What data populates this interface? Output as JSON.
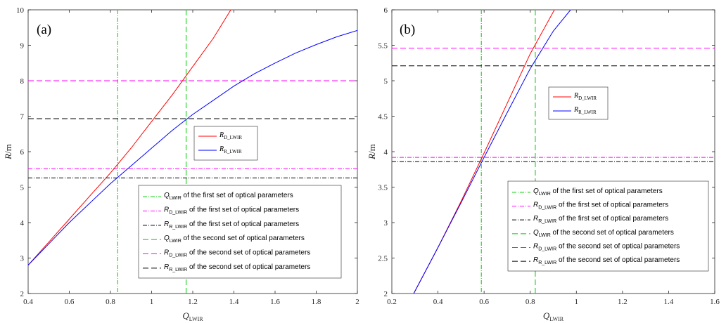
{
  "chart_data": [
    {
      "type": "line",
      "panel_label": "(a)",
      "xlim": [
        0.4,
        2
      ],
      "ylim": [
        2,
        10
      ],
      "xticks": [
        "0.4",
        "0.6",
        "0.8",
        "1",
        "1.2",
        "1.4",
        "1.6",
        "1.8",
        "2"
      ],
      "yticks": [
        "2",
        "3",
        "4",
        "5",
        "6",
        "7",
        "8",
        "9",
        "10"
      ],
      "xlabel": {
        "main": "Q",
        "sub": "LWIR"
      },
      "ylabel": "R/m",
      "grid": false,
      "series": [
        {
          "name": "R_D_LWIR",
          "name_main": "R",
          "name_sub": "D_LWIR",
          "color": "#ff0000",
          "style": "solid",
          "x": [
            0.4,
            0.5,
            0.6,
            0.7,
            0.8,
            0.9,
            1.0,
            1.1,
            1.2,
            1.3,
            1.385
          ],
          "y": [
            2.8,
            3.45,
            4.1,
            4.75,
            5.4,
            6.1,
            6.85,
            7.6,
            8.4,
            9.2,
            10.0
          ]
        },
        {
          "name": "R_R_LWIR",
          "name_main": "R",
          "name_sub": "R_LWIR",
          "color": "#0000ff",
          "style": "solid",
          "x": [
            0.4,
            0.5,
            0.6,
            0.7,
            0.8,
            0.9,
            1.0,
            1.1,
            1.2,
            1.3,
            1.4,
            1.5,
            1.6,
            1.7,
            1.8,
            1.9,
            2.0
          ],
          "y": [
            2.8,
            3.4,
            4.0,
            4.55,
            5.1,
            5.6,
            6.1,
            6.6,
            7.05,
            7.45,
            7.85,
            8.2,
            8.5,
            8.78,
            9.02,
            9.24,
            9.42
          ]
        }
      ],
      "reference_lines": [
        {
          "axis": "x",
          "value": 0.835,
          "color": "#00cc00",
          "dash": "6,2,1,2"
        },
        {
          "axis": "y",
          "value": 5.52,
          "color": "#ff00ff",
          "dash": "6,2,1,2"
        },
        {
          "axis": "y",
          "value": 5.26,
          "color": "#000000",
          "dash": "6,2,1,2"
        },
        {
          "axis": "x",
          "value": 1.168,
          "color": "#00cc00",
          "dash": "8,4"
        },
        {
          "axis": "y",
          "value": 8.0,
          "color": "#ff00ff",
          "dash": "8,4"
        },
        {
          "axis": "y",
          "value": 6.93,
          "color": "#000000",
          "dash": "8,4"
        }
      ],
      "legend_curves_position": "center",
      "legend_refs_position": "bottom-right",
      "legend_refs": [
        {
          "main": "Q",
          "sub": "LWIR",
          "rest": " of the first set of optical parameters",
          "color": "#00cc00",
          "dash": "6,2,1,2"
        },
        {
          "main": "R",
          "sub": "D_LWIR",
          "rest": " of the first set of optical parameters",
          "color": "#ff00ff",
          "dash": "6,2,1,2"
        },
        {
          "main": "R",
          "sub": "R_LWIR",
          "rest": " of the first set of optical parameters",
          "color": "#000000",
          "dash": "6,2,1,2"
        },
        {
          "main": "Q",
          "sub": "LWIR",
          "rest": " of the second set of optical parameters",
          "color": "#00cc00",
          "dash": "8,4"
        },
        {
          "main": "R",
          "sub": "D_LWIR",
          "rest": " of the second set of optical parameters",
          "color": "#ff00ff",
          "dash": "8,4"
        },
        {
          "main": "R",
          "sub": "R_LWIR",
          "rest": " of the second set of optical parameters",
          "color": "#000000",
          "dash": "8,4"
        }
      ]
    },
    {
      "type": "line",
      "panel_label": "(b)",
      "xlim": [
        0.2,
        1.6
      ],
      "ylim": [
        2,
        6
      ],
      "xticks": [
        "0.2",
        "0.4",
        "0.6",
        "0.8",
        "1",
        "1.2",
        "1.4",
        "1.6"
      ],
      "yticks": [
        "2",
        "2.5",
        "3",
        "3.5",
        "4",
        "4.5",
        "5",
        "5.5",
        "6"
      ],
      "xlabel": {
        "main": "Q",
        "sub": "LWIR"
      },
      "ylabel": "R/m",
      "grid": false,
      "series": [
        {
          "name": "R_D_LWIR",
          "name_main": "R",
          "name_sub": "D_LWIR",
          "color": "#ff0000",
          "style": "solid",
          "x": [
            0.295,
            0.4,
            0.5,
            0.6,
            0.7,
            0.8,
            0.905
          ],
          "y": [
            2.0,
            2.65,
            3.3,
            3.98,
            4.68,
            5.38,
            6.0
          ]
        },
        {
          "name": "R_R_LWIR",
          "name_main": "R",
          "name_sub": "R_LWIR",
          "color": "#0000ff",
          "style": "solid",
          "x": [
            0.295,
            0.4,
            0.5,
            0.6,
            0.7,
            0.8,
            0.9,
            0.975
          ],
          "y": [
            2.0,
            2.65,
            3.28,
            3.92,
            4.55,
            5.17,
            5.7,
            6.0
          ]
        }
      ],
      "reference_lines": [
        {
          "axis": "x",
          "value": 0.588,
          "color": "#00cc00",
          "dash": "6,2,1,2"
        },
        {
          "axis": "y",
          "value": 3.92,
          "color": "#ff00ff",
          "dash": "6,2,1,2"
        },
        {
          "axis": "y",
          "value": 3.86,
          "color": "#000000",
          "dash": "6,2,1,2"
        },
        {
          "axis": "x",
          "value": 0.822,
          "color": "#00cc00",
          "dash": "8,4"
        },
        {
          "axis": "y",
          "value": 5.46,
          "color": "#ff00ff",
          "dash": "8,4"
        },
        {
          "axis": "y",
          "value": 5.21,
          "color": "#000000",
          "dash": "8,4"
        }
      ],
      "legend_curves_position": "center",
      "legend_refs_position": "bottom-right",
      "legend_refs": [
        {
          "main": "Q",
          "sub": "LWIR",
          "rest": " of the first set of optical parameters",
          "color": "#00cc00",
          "dash": "6,2,1,2"
        },
        {
          "main": "R",
          "sub": "D_LWIR",
          "rest": " of the first set of optical parameters",
          "color": "#ff00ff",
          "dash": "6,2,1,2"
        },
        {
          "main": "R",
          "sub": "R_LWIR",
          "rest": " of the first set of optical parameters",
          "color": "#000000",
          "dash": "6,2,1,2"
        },
        {
          "main": "Q",
          "sub": "LWIR",
          "rest": " of the second set of optical parameters",
          "color": "#00cc00",
          "dash": "8,4"
        },
        {
          "main": "R",
          "sub": "D_LWIR",
          "rest": " of the second set of optical parameters",
          "color": "#ff00ff",
          "dash": "8,4"
        },
        {
          "main": "R",
          "sub": "R_LWIR",
          "rest": " of the second set of optical parameters",
          "color": "#000000",
          "dash": "8,4"
        }
      ]
    }
  ]
}
